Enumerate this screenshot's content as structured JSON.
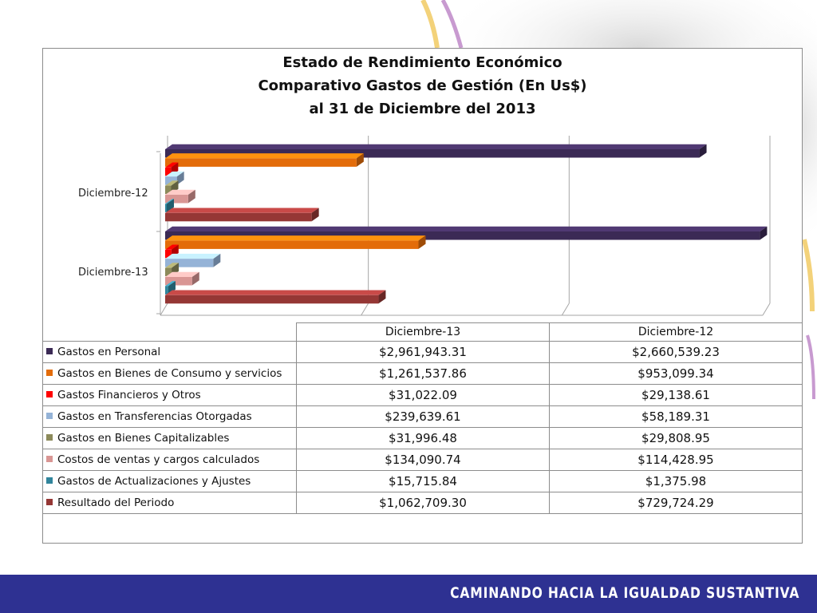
{
  "slide": {
    "footer_text": "CAMINANDO HACIA LA IGUALDAD SUSTANTIVA",
    "footer_color": "#2e3192"
  },
  "chart_data": {
    "type": "bar",
    "orientation": "horizontal",
    "style": "3d-clustered",
    "title": [
      "Estado de Rendimiento Económico",
      "Comparativo Gastos de Gestión (En Us$)",
      "al 31 de Diciembre del 2013"
    ],
    "categories": [
      "Diciembre-13",
      "Diciembre-12"
    ],
    "x_range": [
      0,
      3000000
    ],
    "grid": true,
    "legend": "data-table-below",
    "series": [
      {
        "name": "Gastos en Personal",
        "color": "#3b2a55",
        "values": [
          2961943.31,
          2660539.23
        ],
        "labels": [
          "$2,961,943.31",
          "$2,660,539.23"
        ]
      },
      {
        "name": "Gastos en Bienes de Consumo y servicios",
        "color": "#e36c0a",
        "values": [
          1261537.86,
          953099.34
        ],
        "labels": [
          "$1,261,537.86",
          "$953,099.34"
        ]
      },
      {
        "name": "Gastos Financieros y Otros",
        "color": "#ff0000",
        "values": [
          31022.09,
          29138.61
        ],
        "labels": [
          "$31,022.09",
          "$29,138.61"
        ]
      },
      {
        "name": "Gastos en Transferencias Otorgadas",
        "color": "#95b3d7",
        "values": [
          239639.61,
          58189.31
        ],
        "labels": [
          "$239,639.61",
          "$58,189.31"
        ]
      },
      {
        "name": "Gastos en Bienes Capitalizables",
        "color": "#8c8a5a",
        "values": [
          31996.48,
          29808.95
        ],
        "labels": [
          "$31,996.48",
          "$29,808.95"
        ]
      },
      {
        "name": "Costos de ventas y cargos calculados",
        "color": "#d99694",
        "values": [
          134090.74,
          114428.95
        ],
        "labels": [
          "$134,090.74",
          "$114,428.95"
        ]
      },
      {
        "name": "Gastos de Actualizaciones y Ajustes",
        "color": "#31859c",
        "values": [
          15715.84,
          1375.98
        ],
        "labels": [
          "$15,715.84",
          "$1,375.98"
        ]
      },
      {
        "name": "Resultado del Periodo",
        "color": "#953735",
        "values": [
          1062709.3,
          729724.29
        ],
        "labels": [
          "$1,062,709.30",
          "$729,724.29"
        ]
      }
    ]
  }
}
